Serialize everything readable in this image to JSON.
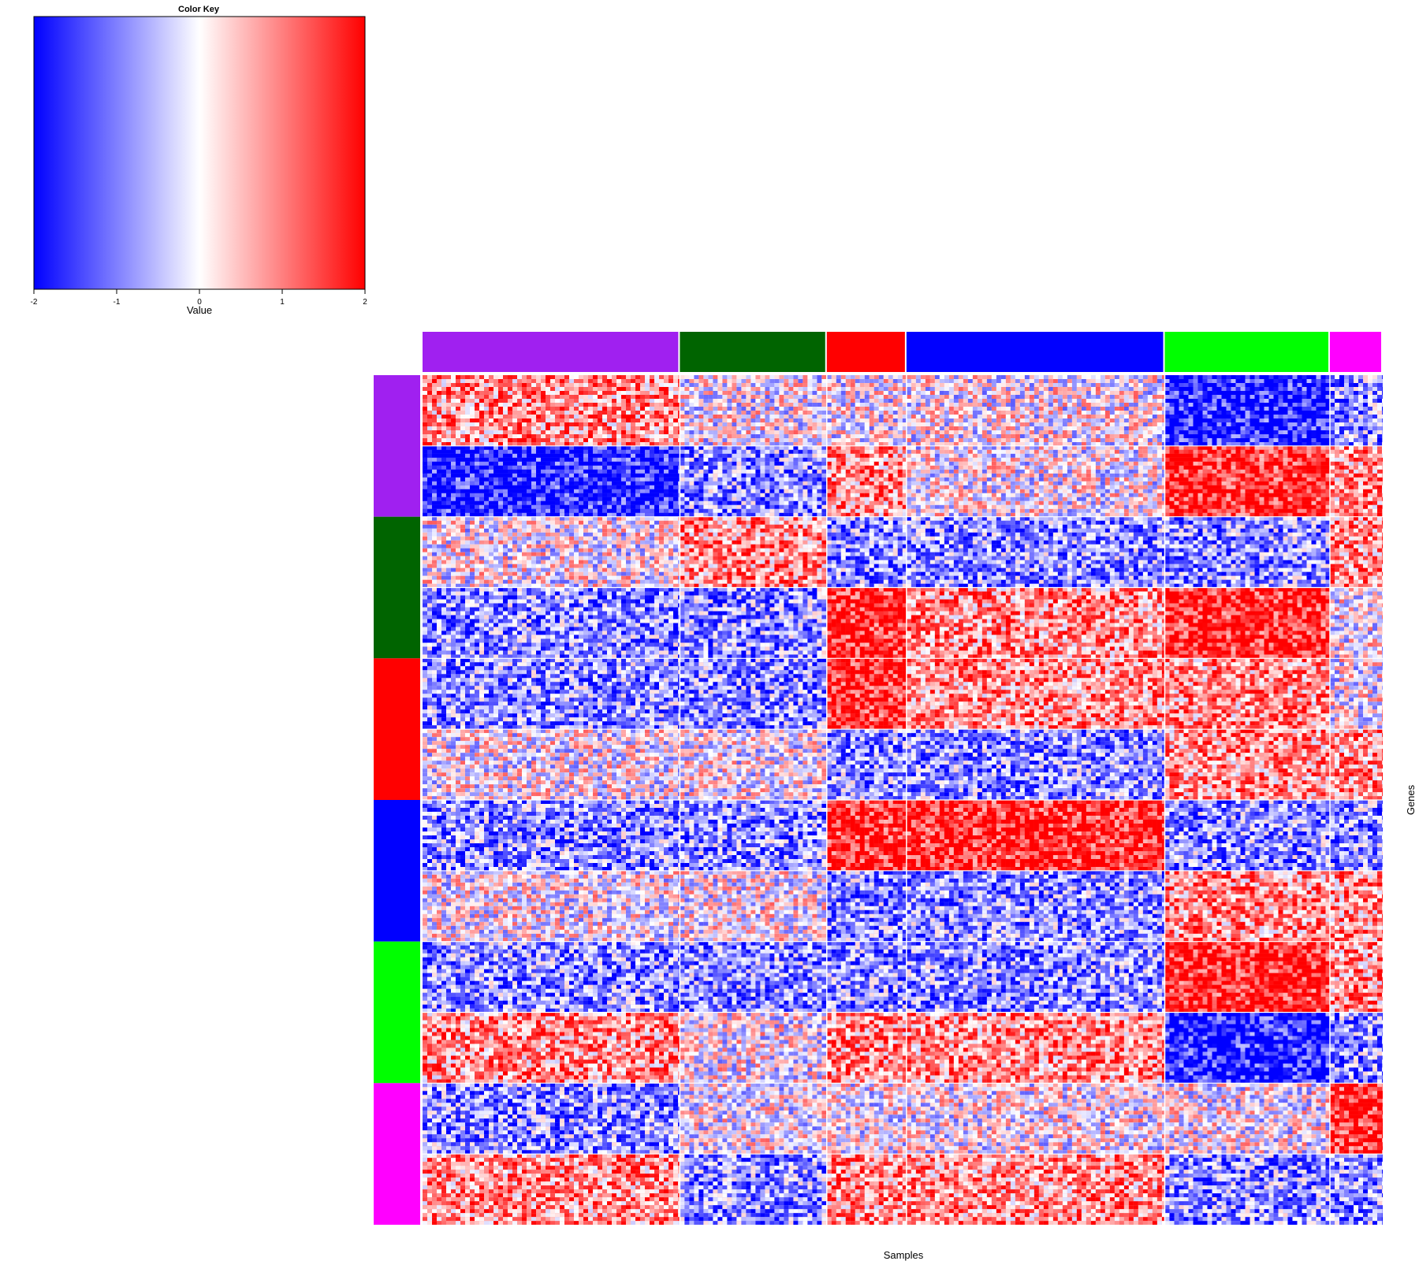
{
  "chart_data": {
    "type": "heatmap",
    "title": "",
    "xlabel": "Samples",
    "ylabel": "Genes",
    "color_key": {
      "title": "Color Key",
      "xlabel": "Value",
      "range": [
        -2,
        2
      ],
      "ticks": [
        "-2",
        "-1",
        "0",
        "1",
        "2"
      ],
      "colors": [
        "#0000ff",
        "#ffffff",
        "#ff0000"
      ]
    },
    "column_groups": [
      {
        "name": "purple",
        "color": "#a020f0",
        "fraction": 0.268
      },
      {
        "name": "darkgreen",
        "color": "#006400",
        "fraction": 0.153
      },
      {
        "name": "red",
        "color": "#ff0000",
        "fraction": 0.083
      },
      {
        "name": "blue",
        "color": "#0000ff",
        "fraction": 0.269
      },
      {
        "name": "green",
        "color": "#00ff00",
        "fraction": 0.172
      },
      {
        "name": "magenta",
        "color": "#ff00ff",
        "fraction": 0.055
      }
    ],
    "row_groups": [
      {
        "name": "purple",
        "color": "#a020f0"
      },
      {
        "name": "darkgreen",
        "color": "#006400"
      },
      {
        "name": "red",
        "color": "#ff0000"
      },
      {
        "name": "blue",
        "color": "#0000ff"
      },
      {
        "name": "green",
        "color": "#00ff00"
      },
      {
        "name": "magenta",
        "color": "#ff00ff"
      }
    ],
    "block_means": [
      [
        1,
        0,
        0,
        0,
        -2,
        -1
      ],
      [
        -2,
        -1,
        1,
        0,
        2,
        1
      ],
      [
        0,
        1,
        -1,
        -1,
        -1,
        1
      ],
      [
        -1,
        -1,
        2,
        1,
        2,
        0
      ],
      [
        -1,
        -1,
        2,
        1,
        1,
        0
      ],
      [
        0,
        0,
        -1,
        -1,
        1,
        1
      ],
      [
        -1,
        -1,
        2,
        2,
        -1,
        -1
      ],
      [
        0,
        0,
        -1,
        -1,
        1,
        1
      ],
      [
        -1,
        -1,
        -1,
        -1,
        2,
        1
      ],
      [
        1,
        0,
        1,
        1,
        -2,
        -1
      ],
      [
        -1,
        0,
        0,
        0,
        0,
        2
      ],
      [
        1,
        -1,
        1,
        1,
        -1,
        -1
      ]
    ]
  }
}
